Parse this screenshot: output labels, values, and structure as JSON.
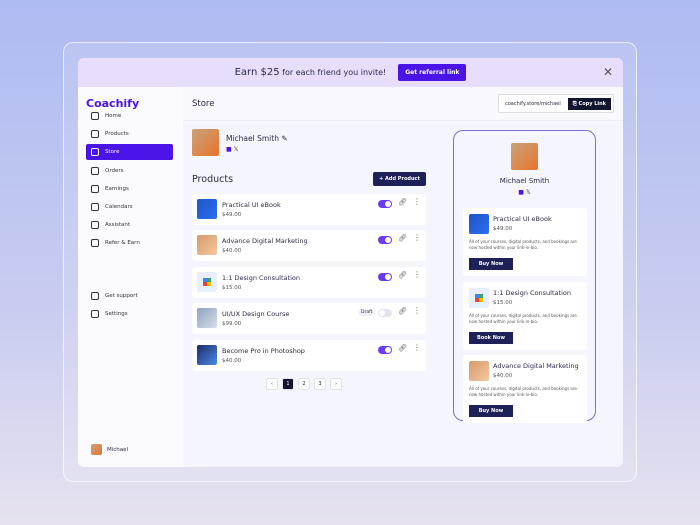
{
  "banner": {
    "earn": "Earn $25",
    "text": "for each friend you invite!",
    "button": "Get referral link"
  },
  "brand": "Coachify",
  "sidebar": {
    "items": [
      {
        "label": "Home"
      },
      {
        "label": "Products"
      },
      {
        "label": "Store",
        "active": true
      },
      {
        "label": "Orders"
      },
      {
        "label": "Earnings"
      },
      {
        "label": "Calendars"
      },
      {
        "label": "Assistant"
      },
      {
        "label": "Refer & Earn"
      }
    ],
    "bottom": [
      {
        "label": "Get support"
      },
      {
        "label": "Settings"
      }
    ],
    "user": "Michael"
  },
  "header": {
    "title": "Store",
    "link": "coachify.store/michael",
    "copy": "Copy Link"
  },
  "profile": {
    "name": "Michael Smith",
    "socials": [
      "linkedin",
      "x"
    ]
  },
  "products": {
    "title": "Products",
    "add": "+ Add Product",
    "items": [
      {
        "name": "Practical UI eBook",
        "price": "$49.00",
        "enabled": true
      },
      {
        "name": "Advance Digital Marketing",
        "price": "$40.00",
        "enabled": true
      },
      {
        "name": "1:1 Design Consultation",
        "price": "$15.00",
        "enabled": true
      },
      {
        "name": "UI/UX Design Course",
        "price": "$99.00",
        "enabled": false,
        "status": "Draft"
      },
      {
        "name": "Become Pro in Photoshop",
        "price": "$40.00",
        "enabled": true
      }
    ]
  },
  "pagination": {
    "prev": "‹",
    "pages": [
      "1",
      "2",
      "3"
    ],
    "current": "1",
    "next": "›"
  },
  "preview": {
    "name": "Michael Smith",
    "cards": [
      {
        "name": "Practical UI eBook",
        "price": "$49.00",
        "desc": "All of your courses, digital products, and bookings are now hosted within your link-in-bio.",
        "button": "Buy Now"
      },
      {
        "name": "1:1 Design Consultation",
        "price": "$15.00",
        "desc": "All of your courses, digital products, and bookings are now hosted within your link-in-bio.",
        "button": "Book Now"
      },
      {
        "name": "Advance Digital Marketing",
        "price": "$40.00",
        "desc": "All of your courses, digital products, and bookings are now hosted within your link-in-bio.",
        "button": "Buy Now"
      }
    ]
  },
  "colors": {
    "accent": "#4a14e8",
    "dark": "#1e2058",
    "banner": "#e8defb"
  }
}
